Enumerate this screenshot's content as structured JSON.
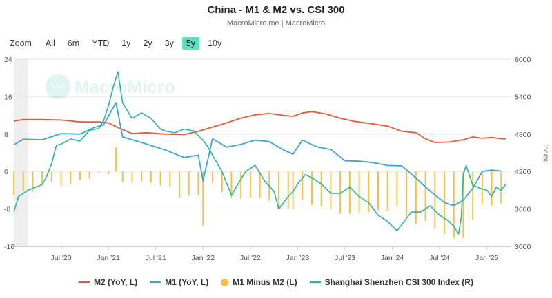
{
  "header": {
    "title": "China - M1 & M2 vs. CSI 300",
    "subtitle": "MacroMicro.me | MacroMicro"
  },
  "range_selector": {
    "zoom_label": "Zoom",
    "buttons": [
      "All",
      "6m",
      "YTD",
      "1y",
      "2y",
      "3y",
      "5y",
      "10y"
    ],
    "active": "5y"
  },
  "watermark": {
    "text": "MacroMicro",
    "icon": "chart-line-icon"
  },
  "legend": [
    {
      "label": "M2 (YoY, L)",
      "color": "#e35a3c",
      "kind": "line"
    },
    {
      "label": "M1 (YoY, L)",
      "color": "#3aa6d4",
      "kind": "line"
    },
    {
      "label": "M1 Minus M2 (L)",
      "color": "#f5c242",
      "kind": "dot"
    },
    {
      "label": "Shanghai Shenzhen CSI 300 Index (R)",
      "color": "#2bb59a",
      "kind": "line"
    }
  ],
  "chart_data": {
    "type": "line",
    "title": "China - M1 & M2 vs. CSI 300",
    "xlabel": "",
    "ylabel_right": "Index",
    "x_ticks": [
      "Jul '20",
      "Jan '21",
      "Jul '21",
      "Jan '22",
      "Jul '22",
      "Jan '23",
      "Jul '23",
      "Jan '24",
      "Jul '24",
      "Jan '25"
    ],
    "y_left_ticks": [
      "24",
      "16",
      "8",
      "0",
      "-8",
      "-16"
    ],
    "y_left_range": [
      -16,
      24
    ],
    "y_right_ticks": [
      "6000",
      "5400",
      "4800",
      "4200",
      "3600",
      "3000"
    ],
    "y_right_range": [
      3000,
      6000
    ],
    "x_range": [
      2020.0,
      2025.25
    ],
    "shaded_start": [
      2020.0,
      2020.15
    ],
    "series": [
      {
        "name": "M2 (YoY, L)",
        "axis": "left",
        "color": "#e35a3c",
        "points": [
          [
            2020.0,
            10.8
          ],
          [
            2020.1,
            11.1
          ],
          [
            2020.3,
            11.1
          ],
          [
            2020.5,
            11.0
          ],
          [
            2020.7,
            10.6
          ],
          [
            2020.9,
            10.6
          ],
          [
            2021.0,
            10.4
          ],
          [
            2021.1,
            9.4
          ],
          [
            2021.25,
            8.1
          ],
          [
            2021.4,
            8.3
          ],
          [
            2021.6,
            8.0
          ],
          [
            2021.8,
            7.9
          ],
          [
            2021.95,
            8.6
          ],
          [
            2022.1,
            9.5
          ],
          [
            2022.25,
            10.4
          ],
          [
            2022.4,
            11.4
          ],
          [
            2022.55,
            12.1
          ],
          [
            2022.7,
            12.4
          ],
          [
            2022.85,
            12.0
          ],
          [
            2022.95,
            11.8
          ],
          [
            2023.05,
            12.5
          ],
          [
            2023.15,
            12.8
          ],
          [
            2023.3,
            12.3
          ],
          [
            2023.45,
            11.4
          ],
          [
            2023.6,
            10.7
          ],
          [
            2023.75,
            10.3
          ],
          [
            2023.95,
            9.7
          ],
          [
            2024.1,
            8.6
          ],
          [
            2024.25,
            8.3
          ],
          [
            2024.35,
            7.0
          ],
          [
            2024.45,
            6.2
          ],
          [
            2024.6,
            6.3
          ],
          [
            2024.75,
            6.8
          ],
          [
            2024.85,
            7.4
          ],
          [
            2024.95,
            7.1
          ],
          [
            2025.05,
            7.3
          ],
          [
            2025.15,
            7.0
          ],
          [
            2025.2,
            7.0
          ]
        ]
      },
      {
        "name": "M1 (YoY, L)",
        "axis": "left",
        "color": "#3aa6d4",
        "points": [
          [
            2020.0,
            5.7
          ],
          [
            2020.1,
            6.9
          ],
          [
            2020.3,
            6.8
          ],
          [
            2020.5,
            8.1
          ],
          [
            2020.7,
            8.0
          ],
          [
            2020.85,
            9.4
          ],
          [
            2020.95,
            10.0
          ],
          [
            2021.08,
            14.7
          ],
          [
            2021.15,
            7.4
          ],
          [
            2021.25,
            6.8
          ],
          [
            2021.4,
            5.9
          ],
          [
            2021.6,
            4.6
          ],
          [
            2021.8,
            3.0
          ],
          [
            2021.95,
            3.5
          ],
          [
            2022.0,
            -2.0
          ],
          [
            2022.1,
            7.0
          ],
          [
            2022.25,
            5.2
          ],
          [
            2022.4,
            5.8
          ],
          [
            2022.55,
            6.7
          ],
          [
            2022.7,
            6.4
          ],
          [
            2022.85,
            4.6
          ],
          [
            2022.95,
            3.7
          ],
          [
            2023.05,
            6.7
          ],
          [
            2023.2,
            5.3
          ],
          [
            2023.35,
            4.7
          ],
          [
            2023.5,
            2.3
          ],
          [
            2023.65,
            2.2
          ],
          [
            2023.8,
            1.9
          ],
          [
            2023.95,
            1.3
          ],
          [
            2024.1,
            1.2
          ],
          [
            2024.25,
            -1.4
          ],
          [
            2024.4,
            -4.2
          ],
          [
            2024.55,
            -6.6
          ],
          [
            2024.65,
            -7.3
          ],
          [
            2024.75,
            -6.1
          ],
          [
            2024.85,
            -3.6
          ],
          [
            2024.95,
            0.0
          ],
          [
            2025.05,
            0.3
          ],
          [
            2025.15,
            0.1
          ]
        ]
      },
      {
        "name": "M1 Minus M2 (L)",
        "axis": "left",
        "color": "#f5c242",
        "type": "bar",
        "points": [
          [
            2020.0,
            -5.0
          ],
          [
            2020.1,
            -4.1
          ],
          [
            2020.2,
            -4.3
          ],
          [
            2020.3,
            -2.7
          ],
          [
            2020.4,
            -2.2
          ],
          [
            2020.5,
            -3.1
          ],
          [
            2020.6,
            -2.6
          ],
          [
            2020.7,
            -1.8
          ],
          [
            2020.8,
            -1.6
          ],
          [
            2020.9,
            -0.3
          ],
          [
            2021.0,
            -0.6
          ],
          [
            2021.08,
            5.2
          ],
          [
            2021.15,
            -2.2
          ],
          [
            2021.25,
            -2.4
          ],
          [
            2021.35,
            -2.1
          ],
          [
            2021.45,
            -2.4
          ],
          [
            2021.55,
            -3.0
          ],
          [
            2021.65,
            -3.3
          ],
          [
            2021.75,
            -5.6
          ],
          [
            2021.85,
            -5.2
          ],
          [
            2021.95,
            -5.0
          ],
          [
            2022.0,
            -11.5
          ],
          [
            2022.1,
            -2.4
          ],
          [
            2022.2,
            -4.4
          ],
          [
            2022.3,
            -5.6
          ],
          [
            2022.4,
            -5.8
          ],
          [
            2022.5,
            -5.6
          ],
          [
            2022.6,
            -5.6
          ],
          [
            2022.7,
            -6.2
          ],
          [
            2022.8,
            -7.8
          ],
          [
            2022.9,
            -7.9
          ],
          [
            2022.95,
            -8.1
          ],
          [
            2023.05,
            -6.1
          ],
          [
            2023.15,
            -7.1
          ],
          [
            2023.25,
            -7.5
          ],
          [
            2023.35,
            -8.1
          ],
          [
            2023.45,
            -9.0
          ],
          [
            2023.55,
            -9.0
          ],
          [
            2023.65,
            -8.8
          ],
          [
            2023.75,
            -8.7
          ],
          [
            2023.85,
            -8.3
          ],
          [
            2023.95,
            -8.4
          ],
          [
            2024.05,
            -7.4
          ],
          [
            2024.15,
            -9.6
          ],
          [
            2024.25,
            -11.2
          ],
          [
            2024.35,
            -10.6
          ],
          [
            2024.45,
            -12.2
          ],
          [
            2024.55,
            -13.3
          ],
          [
            2024.65,
            -14.3
          ],
          [
            2024.75,
            -14.2
          ],
          [
            2024.85,
            -10.3
          ],
          [
            2024.95,
            -7.0
          ],
          [
            2025.05,
            -7.3
          ],
          [
            2025.15,
            -6.8
          ]
        ]
      },
      {
        "name": "Shanghai Shenzhen CSI 300 Index (R)",
        "axis": "right",
        "color": "#2bb59a",
        "points": [
          [
            2020.0,
            3550
          ],
          [
            2020.05,
            3800
          ],
          [
            2020.15,
            3900
          ],
          [
            2020.3,
            3990
          ],
          [
            2020.35,
            4130
          ],
          [
            2020.4,
            4330
          ],
          [
            2020.45,
            4620
          ],
          [
            2020.5,
            4640
          ],
          [
            2020.6,
            4720
          ],
          [
            2020.7,
            4690
          ],
          [
            2020.8,
            4860
          ],
          [
            2020.9,
            4890
          ],
          [
            2020.95,
            5020
          ],
          [
            2021.0,
            5250
          ],
          [
            2021.05,
            5550
          ],
          [
            2021.1,
            5800
          ],
          [
            2021.15,
            5300
          ],
          [
            2021.25,
            5050
          ],
          [
            2021.35,
            5140
          ],
          [
            2021.45,
            5050
          ],
          [
            2021.55,
            4880
          ],
          [
            2021.6,
            4850
          ],
          [
            2021.7,
            4820
          ],
          [
            2021.8,
            4880
          ],
          [
            2021.9,
            4850
          ],
          [
            2022.0,
            4700
          ],
          [
            2022.05,
            4600
          ],
          [
            2022.1,
            4460
          ],
          [
            2022.2,
            4200
          ],
          [
            2022.3,
            3820
          ],
          [
            2022.35,
            3950
          ],
          [
            2022.45,
            4200
          ],
          [
            2022.55,
            4300
          ],
          [
            2022.65,
            4050
          ],
          [
            2022.75,
            3880
          ],
          [
            2022.8,
            3600
          ],
          [
            2022.9,
            3800
          ],
          [
            2022.95,
            3880
          ],
          [
            2023.0,
            4000
          ],
          [
            2023.08,
            4150
          ],
          [
            2023.15,
            4100
          ],
          [
            2023.25,
            4000
          ],
          [
            2023.35,
            3850
          ],
          [
            2023.45,
            3850
          ],
          [
            2023.55,
            3950
          ],
          [
            2023.65,
            3800
          ],
          [
            2023.75,
            3700
          ],
          [
            2023.85,
            3500
          ],
          [
            2023.95,
            3400
          ],
          [
            2024.05,
            3250
          ],
          [
            2024.1,
            3350
          ],
          [
            2024.2,
            3550
          ],
          [
            2024.3,
            3550
          ],
          [
            2024.4,
            3650
          ],
          [
            2024.5,
            3500
          ],
          [
            2024.6,
            3400
          ],
          [
            2024.65,
            3320
          ],
          [
            2024.7,
            3200
          ],
          [
            2024.73,
            3480
          ],
          [
            2024.75,
            4150
          ],
          [
            2024.78,
            4300
          ],
          [
            2024.85,
            3980
          ],
          [
            2024.95,
            3920
          ],
          [
            2025.0,
            3900
          ],
          [
            2025.05,
            3800
          ],
          [
            2025.1,
            3950
          ],
          [
            2025.15,
            3900
          ],
          [
            2025.2,
            4000
          ]
        ]
      }
    ]
  }
}
